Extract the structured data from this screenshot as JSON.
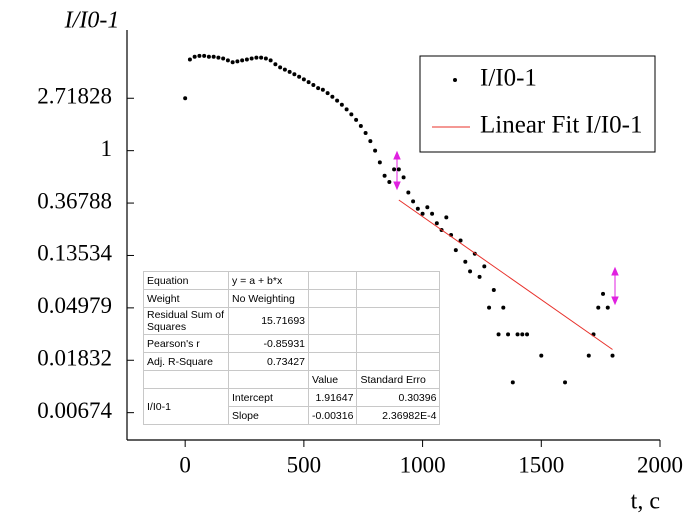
{
  "chart_data": {
    "type": "scatter",
    "ylabel": "I/I0-1",
    "xlabel": "t, c",
    "xlim": [
      -245,
      2000
    ],
    "xticks": [
      0,
      500,
      1000,
      1500,
      2000
    ],
    "ylim": [
      0.004,
      10
    ],
    "yscale": "log-e",
    "yticks": [
      2.71828,
      1,
      0.36788,
      0.13534,
      0.04979,
      0.01832,
      0.00674
    ],
    "legend": "top-right",
    "series": [
      {
        "name": "I/I0-1",
        "color": "#000000",
        "kind": "points",
        "x": [
          0,
          20,
          40,
          60,
          80,
          100,
          120,
          140,
          160,
          180,
          200,
          220,
          240,
          260,
          280,
          300,
          320,
          340,
          360,
          380,
          400,
          420,
          440,
          460,
          480,
          500,
          520,
          540,
          560,
          580,
          600,
          620,
          640,
          660,
          680,
          700,
          720,
          740,
          760,
          780,
          800,
          820,
          840,
          860,
          880,
          900,
          920,
          940,
          960,
          980,
          1000,
          1020,
          1040,
          1060,
          1080,
          1100,
          1120,
          1140,
          1160,
          1180,
          1200,
          1220,
          1240,
          1260,
          1280,
          1300,
          1320,
          1340,
          1360,
          1380,
          1400,
          1420,
          1440,
          1500,
          1600,
          1700,
          1720,
          1740,
          1760,
          1780,
          1800
        ],
        "values": [
          2.72,
          5.7,
          6.0,
          6.1,
          6.1,
          6.0,
          6.0,
          5.9,
          5.8,
          5.6,
          5.4,
          5.5,
          5.6,
          5.7,
          5.8,
          5.9,
          5.9,
          5.8,
          5.6,
          5.2,
          4.9,
          4.7,
          4.5,
          4.3,
          4.1,
          3.9,
          3.7,
          3.5,
          3.3,
          3.2,
          3.0,
          2.8,
          2.6,
          2.4,
          2.2,
          2.0,
          1.8,
          1.6,
          1.4,
          1.2,
          1.0,
          0.8,
          0.62,
          0.55,
          0.7,
          0.7,
          0.6,
          0.45,
          0.38,
          0.33,
          0.3,
          0.34,
          0.3,
          0.25,
          0.22,
          0.28,
          0.2,
          0.15,
          0.18,
          0.12,
          0.1,
          0.14,
          0.09,
          0.11,
          0.05,
          0.07,
          0.03,
          0.05,
          0.03,
          0.012,
          0.03,
          0.03,
          0.03,
          0.02,
          0.012,
          0.02,
          0.03,
          0.05,
          0.065,
          0.05,
          0.02
        ]
      },
      {
        "name": "Linear Fit I/I0-1",
        "color": "#e8302a",
        "kind": "line",
        "x": [
          900,
          1800
        ],
        "values": [
          0.39,
          0.0225
        ]
      }
    ]
  },
  "stats_table": {
    "rows": [
      {
        "label": "Equation",
        "value": "y = a + b*x"
      },
      {
        "label": "Weight",
        "value": "No Weighting"
      },
      {
        "label": "Residual Sum of Squares",
        "value": "15.71693"
      },
      {
        "label": "Pearson's r",
        "value": "-0.85931"
      },
      {
        "label": "Adj. R-Square",
        "value": "0.73427"
      }
    ],
    "columns": [
      "Value",
      "Standard Erro"
    ],
    "group": "I/I0-1",
    "params": [
      {
        "name": "Intercept",
        "value": "1.91647",
        "error": "0.30396"
      },
      {
        "name": "Slope",
        "value": "-0.00316",
        "error": "2.36982E-4"
      }
    ]
  }
}
